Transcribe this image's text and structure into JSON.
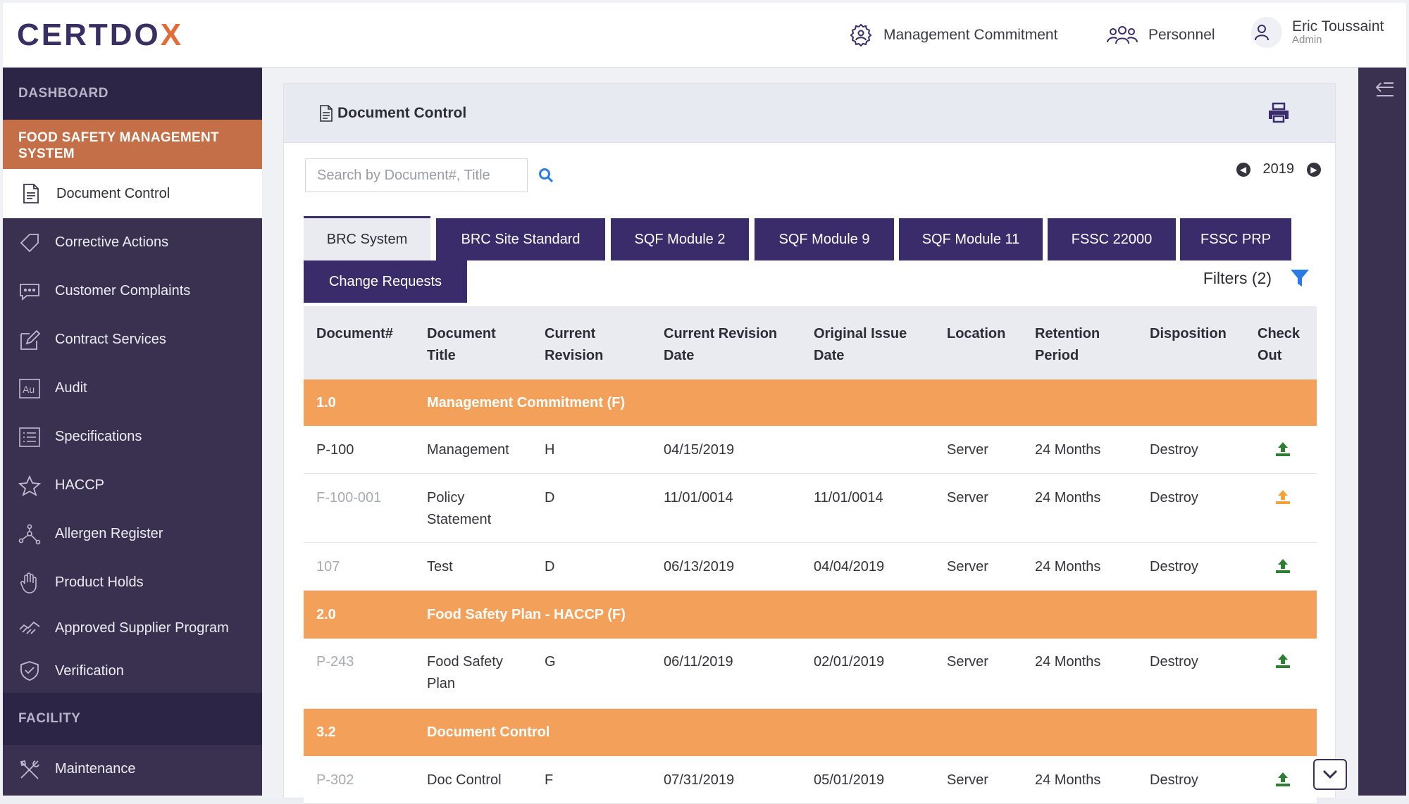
{
  "app": {
    "logo_main": "CERTDO",
    "logo_accent": "X"
  },
  "header": {
    "management_commitment": "Management Commitment",
    "personnel": "Personnel",
    "user_name": "Eric Toussaint",
    "user_role": "Admin"
  },
  "sidebar": {
    "dashboard": "DASHBOARD",
    "group": "FOOD SAFETY MANAGEMENT SYSTEM",
    "current": "Document Control",
    "items": [
      {
        "label": "Corrective Actions",
        "icon": "tag-icon"
      },
      {
        "label": "Customer Complaints",
        "icon": "chat-icon"
      },
      {
        "label": "Contract Services",
        "icon": "edit-icon"
      },
      {
        "label": "Audit",
        "icon": "audit-icon"
      },
      {
        "label": "Specifications",
        "icon": "list-icon"
      },
      {
        "label": "HACCP",
        "icon": "star-icon"
      },
      {
        "label": "Allergen Register",
        "icon": "network-icon"
      },
      {
        "label": "Product Holds",
        "icon": "hand-icon"
      },
      {
        "label": "Approved Supplier Program",
        "icon": "handshake-icon"
      },
      {
        "label": "Verification",
        "icon": "shield-check-icon"
      }
    ],
    "facility": "FACILITY",
    "facility_items": [
      {
        "label": "Maintenance",
        "icon": "tools-icon"
      }
    ]
  },
  "card": {
    "title": "Document Control"
  },
  "search": {
    "placeholder": "Search by Document#, Title"
  },
  "year_nav": {
    "year": "2019"
  },
  "tabs": [
    "BRC System",
    "BRC Site Standard",
    "SQF Module 2",
    "SQF Module 9",
    "SQF Module 11",
    "FSSC 22000",
    "FSSC PRP",
    "Change Requests"
  ],
  "filters": {
    "label": "Filters (2)"
  },
  "table": {
    "headers": {
      "doc": "Document#",
      "title_1": "Document",
      "title_2": "Title",
      "rev_1": "Current",
      "rev_2": "Revision",
      "revdate_1": "Current Revision",
      "revdate_2": "Date",
      "orig_1": "Original Issue",
      "orig_2": "Date",
      "location": "Location",
      "ret_1": "Retention",
      "ret_2": "Period",
      "disposition": "Disposition",
      "check_1": "Check",
      "check_2": "Out"
    },
    "groups": [
      {
        "num": "1.0",
        "title": "Management Commitment (F)"
      },
      {
        "num": "2.0",
        "title": "Food Safety Plan - HACCP (F)"
      },
      {
        "num": "3.2",
        "title": "Document Control"
      }
    ],
    "rows": [
      {
        "doc": "P-100",
        "title_1": "Management",
        "title_2": "",
        "rev": "H",
        "revdate": "04/15/2019",
        "orig": "",
        "location": "Server",
        "retention": "24 Months",
        "disposition": "Destroy",
        "upload_color": "#2e7d32"
      },
      {
        "doc": "F-100-001",
        "title_1": "Policy",
        "title_2": "Statement",
        "rev": "D",
        "revdate": "11/01/0014",
        "orig": "11/01/0014",
        "location": "Server",
        "retention": "24 Months",
        "disposition": "Destroy",
        "upload_color": "#f2a33a"
      },
      {
        "doc": "107",
        "title_1": "Test",
        "title_2": "",
        "rev": "D",
        "revdate": "06/13/2019",
        "orig": "04/04/2019",
        "location": "Server",
        "retention": "24 Months",
        "disposition": "Destroy",
        "upload_color": "#2e7d32"
      },
      {
        "doc": "P-243",
        "title_1": "Food Safety",
        "title_2": "Plan",
        "rev": "G",
        "revdate": "06/11/2019",
        "orig": "02/01/2019",
        "location": "Server",
        "retention": "24 Months",
        "disposition": "Destroy",
        "upload_color": "#2e7d32"
      },
      {
        "doc": "P-302",
        "title_1": "Doc Control",
        "title_2": "",
        "rev": "F",
        "revdate": "07/31/2019",
        "orig": "05/01/2019",
        "location": "Server",
        "retention": "24 Months",
        "disposition": "Destroy",
        "upload_color": "#2e7d32"
      }
    ]
  },
  "colors": {
    "brand_purple": "#3a2c6a",
    "accent_orange": "#f2a05a",
    "active_group": "#c46f48",
    "upload_green": "#2e7d32",
    "upload_orange": "#f2a33a"
  }
}
